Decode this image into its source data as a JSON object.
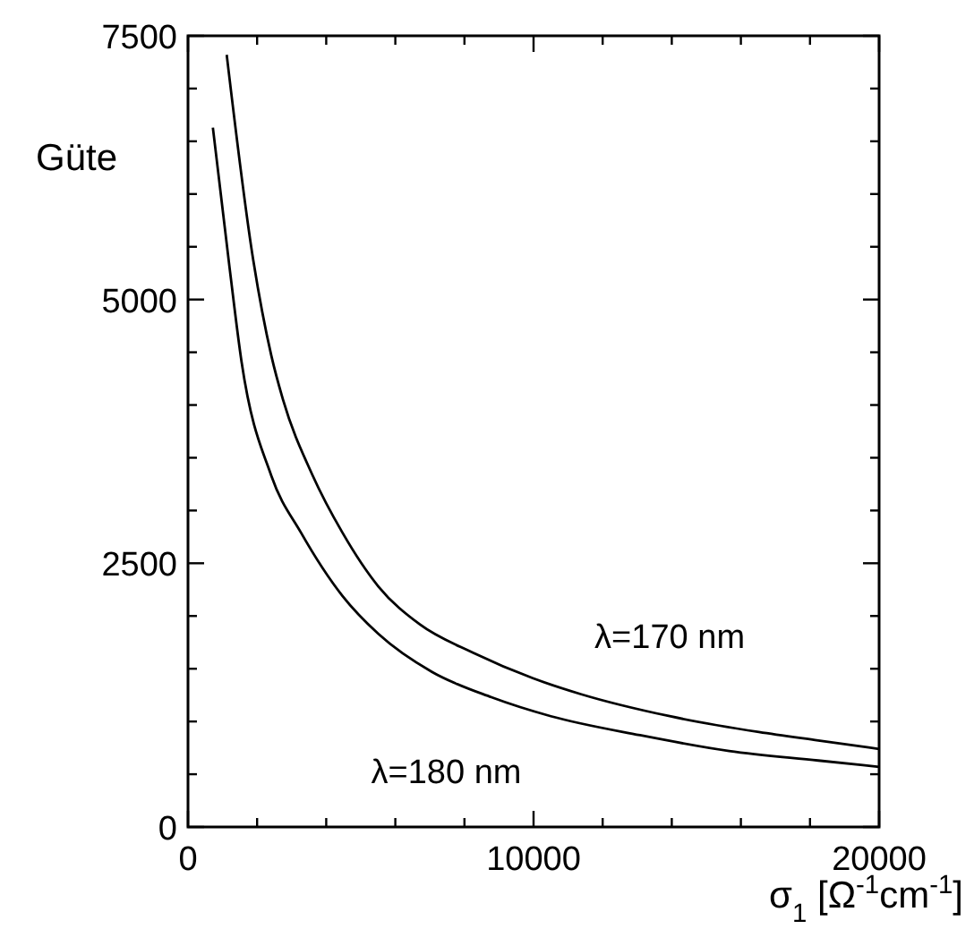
{
  "chart_data": {
    "type": "line",
    "ylabel": "Güte",
    "xlabel": "σ$_{1}$ [Ω$^{-1}$cm$^{-1}$]",
    "xlim": [
      0,
      20000
    ],
    "ylim": [
      0,
      7500
    ],
    "xticks": [
      0,
      {
        "value": 2000,
        "label": null
      },
      {
        "value": 4000,
        "label": null
      },
      {
        "value": 6000,
        "label": null
      },
      {
        "value": 8000,
        "label": null
      },
      10000,
      {
        "value": 12000,
        "label": null
      },
      {
        "value": 14000,
        "label": null
      },
      {
        "value": 16000,
        "label": null
      },
      {
        "value": 18000,
        "label": null
      },
      20000
    ],
    "yticks": [
      0,
      {
        "value": 500,
        "label": null
      },
      {
        "value": 1000,
        "label": null
      },
      {
        "value": 1500,
        "label": null
      },
      {
        "value": 2000,
        "label": null
      },
      2500,
      {
        "value": 3000,
        "label": null
      },
      {
        "value": 3500,
        "label": null
      },
      {
        "value": 4000,
        "label": null
      },
      {
        "value": 4500,
        "label": null
      },
      5000,
      {
        "value": 5500,
        "label": null
      },
      {
        "value": 6000,
        "label": null
      },
      {
        "value": 6500,
        "label": null
      },
      {
        "value": 7000,
        "label": null
      },
      7500
    ],
    "marker": "none",
    "line_style": "solid",
    "series": [
      {
        "name": "λ=170 nm",
        "color": "#000000",
        "x": [
          1120,
          1890,
          2410,
          2750,
          3610,
          4470,
          5510,
          6710,
          8260,
          9980,
          11360,
          13940,
          16520,
          18240,
          20000
        ],
        "values": [
          7320,
          5370,
          4470,
          4050,
          3330,
          2790,
          2280,
          1920,
          1650,
          1410,
          1260,
          1050,
          900,
          820,
          740
        ]
      },
      {
        "name": "λ=180 nm",
        "color": "#000000",
        "x": [
          720,
          1200,
          1550,
          2410,
          3270,
          4470,
          5510,
          7060,
          8780,
          10500,
          13080,
          15660,
          18240,
          20000
        ],
        "values": [
          6630,
          5310,
          4410,
          3330,
          2790,
          2190,
          1830,
          1470,
          1230,
          1050,
          870,
          720,
          630,
          570
        ]
      }
    ]
  }
}
